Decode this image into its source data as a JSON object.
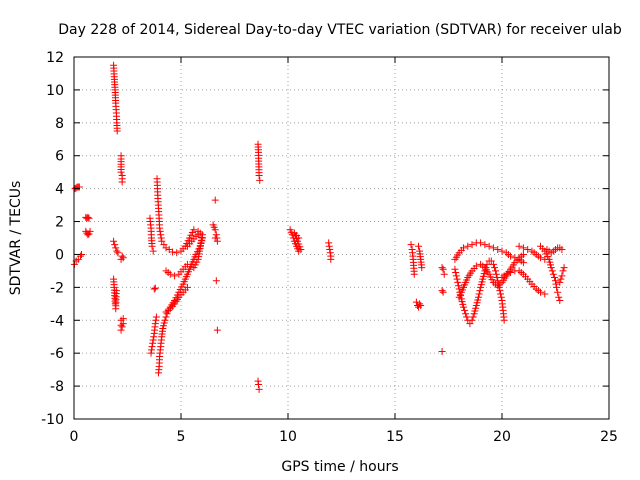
{
  "chart_data": {
    "type": "scatter",
    "title": "Day 228 of 2014, Sidereal Day-to-day VTEC variation (SDTVAR) for receiver ulab",
    "xlabel": "GPS time / hours",
    "ylabel": "SDTVAR / TECUs",
    "xlim": [
      0,
      25
    ],
    "ylim": [
      -10,
      12
    ],
    "xticks": [
      0,
      5,
      10,
      15,
      20,
      25
    ],
    "yticks": [
      -10,
      -8,
      -6,
      -4,
      -2,
      0,
      2,
      4,
      6,
      8,
      10,
      12
    ],
    "grid": true,
    "marker": "+",
    "color": "#ff0000",
    "series": [
      {
        "name": "SDTVAR",
        "segments": [
          [
            [
              0.02,
              -0.6
            ],
            [
              0.1,
              -0.4
            ],
            [
              0.2,
              -0.3
            ],
            [
              0.3,
              -0.1
            ],
            [
              0.35,
              0
            ]
          ],
          [
            [
              0.05,
              4.0
            ],
            [
              0.1,
              4.05
            ],
            [
              0.15,
              4.1
            ],
            [
              0.2,
              4.1
            ],
            [
              0.25,
              4.1
            ]
          ],
          [
            [
              0.55,
              2.25
            ],
            [
              0.6,
              2.2
            ],
            [
              0.65,
              2.25
            ],
            [
              0.7,
              2.2
            ]
          ],
          [
            [
              0.55,
              1.4
            ],
            [
              0.6,
              1.3
            ],
            [
              0.65,
              1.2
            ],
            [
              0.7,
              1.25
            ],
            [
              0.75,
              1.4
            ]
          ],
          [
            [
              1.85,
              11.5
            ],
            [
              1.88,
              10.8
            ],
            [
              1.92,
              10.0
            ],
            [
              1.95,
              9.2
            ],
            [
              1.98,
              8.6
            ],
            [
              2.0,
              8.0
            ],
            [
              2.02,
              7.5
            ]
          ],
          [
            [
              1.85,
              0.8
            ],
            [
              1.9,
              0.6
            ],
            [
              1.95,
              0.4
            ],
            [
              2.0,
              0.2
            ],
            [
              2.05,
              0.1
            ]
          ],
          [
            [
              1.85,
              -1.5
            ],
            [
              1.88,
              -2.0
            ],
            [
              1.9,
              -2.5
            ],
            [
              1.93,
              -3.0
            ],
            [
              1.95,
              -3.3
            ],
            [
              1.98,
              -2.2
            ]
          ],
          [
            [
              2.2,
              6.0
            ],
            [
              2.2,
              5.8
            ],
            [
              2.2,
              5.0
            ],
            [
              2.25,
              4.8
            ],
            [
              2.25,
              4.4
            ]
          ],
          [
            [
              2.2,
              -0.3
            ],
            [
              2.25,
              -0.1
            ],
            [
              2.3,
              -0.2
            ]
          ],
          [
            [
              2.2,
              -4.0
            ],
            [
              2.2,
              -4.3
            ],
            [
              2.2,
              -4.6
            ],
            [
              2.3,
              -4.2
            ],
            [
              2.3,
              -3.9
            ]
          ],
          [
            [
              3.6,
              -6.0
            ],
            [
              3.65,
              -5.6
            ],
            [
              3.7,
              -5.2
            ],
            [
              3.75,
              -4.8
            ],
            [
              3.8,
              -4.2
            ],
            [
              3.85,
              -3.8
            ]
          ],
          [
            [
              3.55,
              2.2
            ],
            [
              3.6,
              1.6
            ],
            [
              3.62,
              1.0
            ],
            [
              3.65,
              0.5
            ],
            [
              3.7,
              0.2
            ]
          ],
          [
            [
              3.75,
              -2.1
            ],
            [
              3.8,
              -2.05
            ]
          ],
          [
            [
              3.88,
              4.6
            ],
            [
              3.9,
              4.0
            ],
            [
              3.92,
              3.4
            ],
            [
              3.95,
              2.8
            ],
            [
              3.98,
              2.2
            ],
            [
              4.0,
              1.6
            ],
            [
              4.05,
              1.2
            ],
            [
              4.1,
              0.8
            ],
            [
              4.2,
              0.6
            ],
            [
              4.3,
              0.4
            ],
            [
              4.45,
              0.3
            ],
            [
              4.6,
              0.15
            ],
            [
              4.8,
              0.1
            ],
            [
              5.0,
              0.2
            ],
            [
              5.2,
              0.5
            ],
            [
              5.4,
              1.0
            ],
            [
              5.6,
              1.5
            ],
            [
              5.8,
              1.4
            ]
          ],
          [
            [
              3.95,
              -7.2
            ],
            [
              3.98,
              -6.8
            ],
            [
              4.0,
              -6.2
            ],
            [
              4.05,
              -5.6
            ],
            [
              4.1,
              -5.0
            ],
            [
              4.15,
              -4.5
            ],
            [
              4.25,
              -4.0
            ],
            [
              4.35,
              -3.6
            ],
            [
              4.5,
              -3.2
            ],
            [
              4.7,
              -2.8
            ],
            [
              4.9,
              -2.3
            ],
            [
              5.1,
              -1.8
            ],
            [
              5.3,
              -1.2
            ],
            [
              5.5,
              -0.6
            ],
            [
              5.7,
              0
            ],
            [
              5.9,
              0.5
            ],
            [
              6.0,
              1.0
            ]
          ],
          [
            [
              4.3,
              -1.0
            ],
            [
              4.5,
              -1.2
            ],
            [
              4.7,
              -1.3
            ],
            [
              4.9,
              -1.2
            ],
            [
              5.1,
              -0.9
            ],
            [
              5.3,
              -0.6
            ]
          ],
          [
            [
              4.3,
              -3.5
            ],
            [
              4.5,
              -3.3
            ],
            [
              4.7,
              -3.0
            ],
            [
              4.9,
              -2.6
            ],
            [
              5.1,
              -2.3
            ],
            [
              5.3,
              -2.0
            ]
          ],
          [
            [
              5.3,
              0.5
            ],
            [
              5.5,
              0.8
            ],
            [
              5.7,
              1.1
            ],
            [
              5.9,
              1.3
            ],
            [
              6.0,
              1.2
            ],
            [
              5.8,
              -0.3
            ],
            [
              5.6,
              -0.8
            ]
          ],
          [
            [
              6.5,
              1.8
            ],
            [
              6.6,
              1.5
            ],
            [
              6.65,
              1.2
            ],
            [
              6.7,
              0.8
            ],
            [
              6.6,
              1.0
            ]
          ],
          [
            [
              6.6,
              3.3
            ]
          ],
          [
            [
              6.65,
              -1.6
            ]
          ],
          [
            [
              6.7,
              -4.6
            ]
          ],
          [
            [
              8.6,
              6.7
            ],
            [
              8.62,
              6.2
            ],
            [
              8.65,
              4.8
            ],
            [
              8.68,
              4.5
            ]
          ],
          [
            [
              8.6,
              -7.7
            ],
            [
              8.62,
              -7.9
            ],
            [
              8.65,
              -8.2
            ]
          ],
          [
            [
              10.1,
              1.5
            ],
            [
              10.2,
              1.2
            ],
            [
              10.3,
              0.8
            ],
            [
              10.4,
              0.5
            ],
            [
              10.5,
              0.2
            ],
            [
              10.6,
              0.3
            ],
            [
              10.3,
              1.3
            ],
            [
              10.5,
              1.0
            ]
          ],
          [
            [
              11.9,
              0.7
            ],
            [
              11.95,
              0.3
            ],
            [
              12.0,
              -0.1
            ],
            [
              12.0,
              -0.3
            ]
          ],
          [
            [
              15.75,
              0.6
            ],
            [
              15.8,
              0.3
            ],
            [
              15.85,
              -0.3
            ],
            [
              15.9,
              -1.2
            ]
          ],
          [
            [
              16.0,
              -2.9
            ],
            [
              16.05,
              -3.1
            ],
            [
              16.1,
              -3.2
            ],
            [
              16.15,
              -3.0
            ],
            [
              16.2,
              -3.1
            ]
          ],
          [
            [
              16.1,
              0.5
            ],
            [
              16.15,
              0.2
            ],
            [
              16.2,
              -0.3
            ],
            [
              16.25,
              -0.8
            ]
          ],
          [
            [
              17.2,
              -0.8
            ],
            [
              17.25,
              -0.9
            ],
            [
              17.3,
              -1.2
            ]
          ],
          [
            [
              17.2,
              -2.2
            ],
            [
              17.25,
              -2.3
            ]
          ],
          [
            [
              17.2,
              -5.9
            ]
          ],
          [
            [
              17.8,
              -0.9
            ],
            [
              17.9,
              -1.5
            ],
            [
              18.0,
              -2.1
            ],
            [
              18.1,
              -2.7
            ],
            [
              18.2,
              -3.2
            ],
            [
              18.3,
              -3.6
            ],
            [
              18.4,
              -4.0
            ],
            [
              18.5,
              -4.2
            ],
            [
              18.6,
              -4.0
            ],
            [
              18.7,
              -3.6
            ],
            [
              18.8,
              -3.1
            ],
            [
              18.9,
              -2.6
            ],
            [
              19.0,
              -2.0
            ],
            [
              19.1,
              -1.5
            ],
            [
              19.2,
              -1.0
            ],
            [
              19.3,
              -0.6
            ],
            [
              19.4,
              -0.4
            ],
            [
              19.5,
              -0.4
            ],
            [
              19.6,
              -0.6
            ],
            [
              19.7,
              -1.0
            ],
            [
              19.8,
              -1.6
            ],
            [
              19.9,
              -2.2
            ],
            [
              20.0,
              -2.8
            ],
            [
              20.05,
              -3.4
            ],
            [
              20.1,
              -4.0
            ]
          ],
          [
            [
              17.8,
              -0.3
            ],
            [
              18.0,
              0.1
            ],
            [
              18.2,
              0.4
            ],
            [
              18.4,
              0.5
            ],
            [
              18.6,
              0.6
            ],
            [
              18.8,
              0.7
            ],
            [
              19.0,
              0.7
            ],
            [
              19.2,
              0.6
            ],
            [
              19.4,
              0.5
            ],
            [
              19.6,
              0.4
            ],
            [
              19.8,
              0.3
            ],
            [
              20.0,
              0.2
            ],
            [
              20.2,
              0.1
            ],
            [
              20.4,
              -0.1
            ],
            [
              20.6,
              -0.2
            ],
            [
              20.8,
              -0.3
            ],
            [
              21.0,
              -0.5
            ]
          ],
          [
            [
              18.0,
              -2.6
            ],
            [
              18.2,
              -2.0
            ],
            [
              18.4,
              -1.4
            ],
            [
              18.6,
              -1.0
            ],
            [
              18.8,
              -0.7
            ],
            [
              19.0,
              -0.6
            ],
            [
              19.2,
              -0.8
            ],
            [
              19.4,
              -1.2
            ],
            [
              19.6,
              -1.7
            ],
            [
              19.8,
              -1.9
            ],
            [
              20.0,
              -1.7
            ],
            [
              20.2,
              -1.3
            ],
            [
              20.4,
              -0.9
            ],
            [
              20.6,
              -0.5
            ],
            [
              20.8,
              -0.2
            ],
            [
              21.0,
              0.0
            ]
          ],
          [
            [
              20.0,
              -1.4
            ],
            [
              20.2,
              -1.2
            ],
            [
              20.4,
              -1.1
            ],
            [
              20.6,
              -1.0
            ],
            [
              20.8,
              -1.0
            ],
            [
              21.0,
              -1.2
            ],
            [
              21.2,
              -1.5
            ],
            [
              21.4,
              -1.8
            ],
            [
              21.6,
              -2.1
            ],
            [
              21.8,
              -2.3
            ],
            [
              22.0,
              -2.4
            ]
          ],
          [
            [
              20.8,
              0.5
            ],
            [
              21.0,
              0.4
            ],
            [
              21.2,
              0.3
            ],
            [
              21.4,
              0.2
            ],
            [
              21.6,
              0.0
            ],
            [
              21.8,
              -0.2
            ],
            [
              22.0,
              -0.3
            ]
          ],
          [
            [
              21.8,
              0.5
            ],
            [
              22.0,
              0.2
            ],
            [
              22.2,
              -0.3
            ],
            [
              22.3,
              -0.8
            ],
            [
              22.4,
              -1.2
            ],
            [
              22.5,
              -1.6
            ],
            [
              22.55,
              -2.0
            ],
            [
              22.6,
              -2.3
            ],
            [
              22.65,
              -2.6
            ],
            [
              22.7,
              -2.8
            ]
          ],
          [
            [
              22.1,
              0.3
            ],
            [
              22.2,
              0.2
            ],
            [
              22.3,
              0.1
            ],
            [
              22.4,
              0.2
            ],
            [
              22.5,
              0.3
            ],
            [
              22.6,
              0.4
            ],
            [
              22.7,
              0.4
            ],
            [
              22.8,
              0.3
            ]
          ],
          [
            [
              22.7,
              -1.7
            ],
            [
              22.8,
              -1.3
            ],
            [
              22.85,
              -1.0
            ],
            [
              22.9,
              -0.8
            ]
          ]
        ]
      }
    ]
  }
}
